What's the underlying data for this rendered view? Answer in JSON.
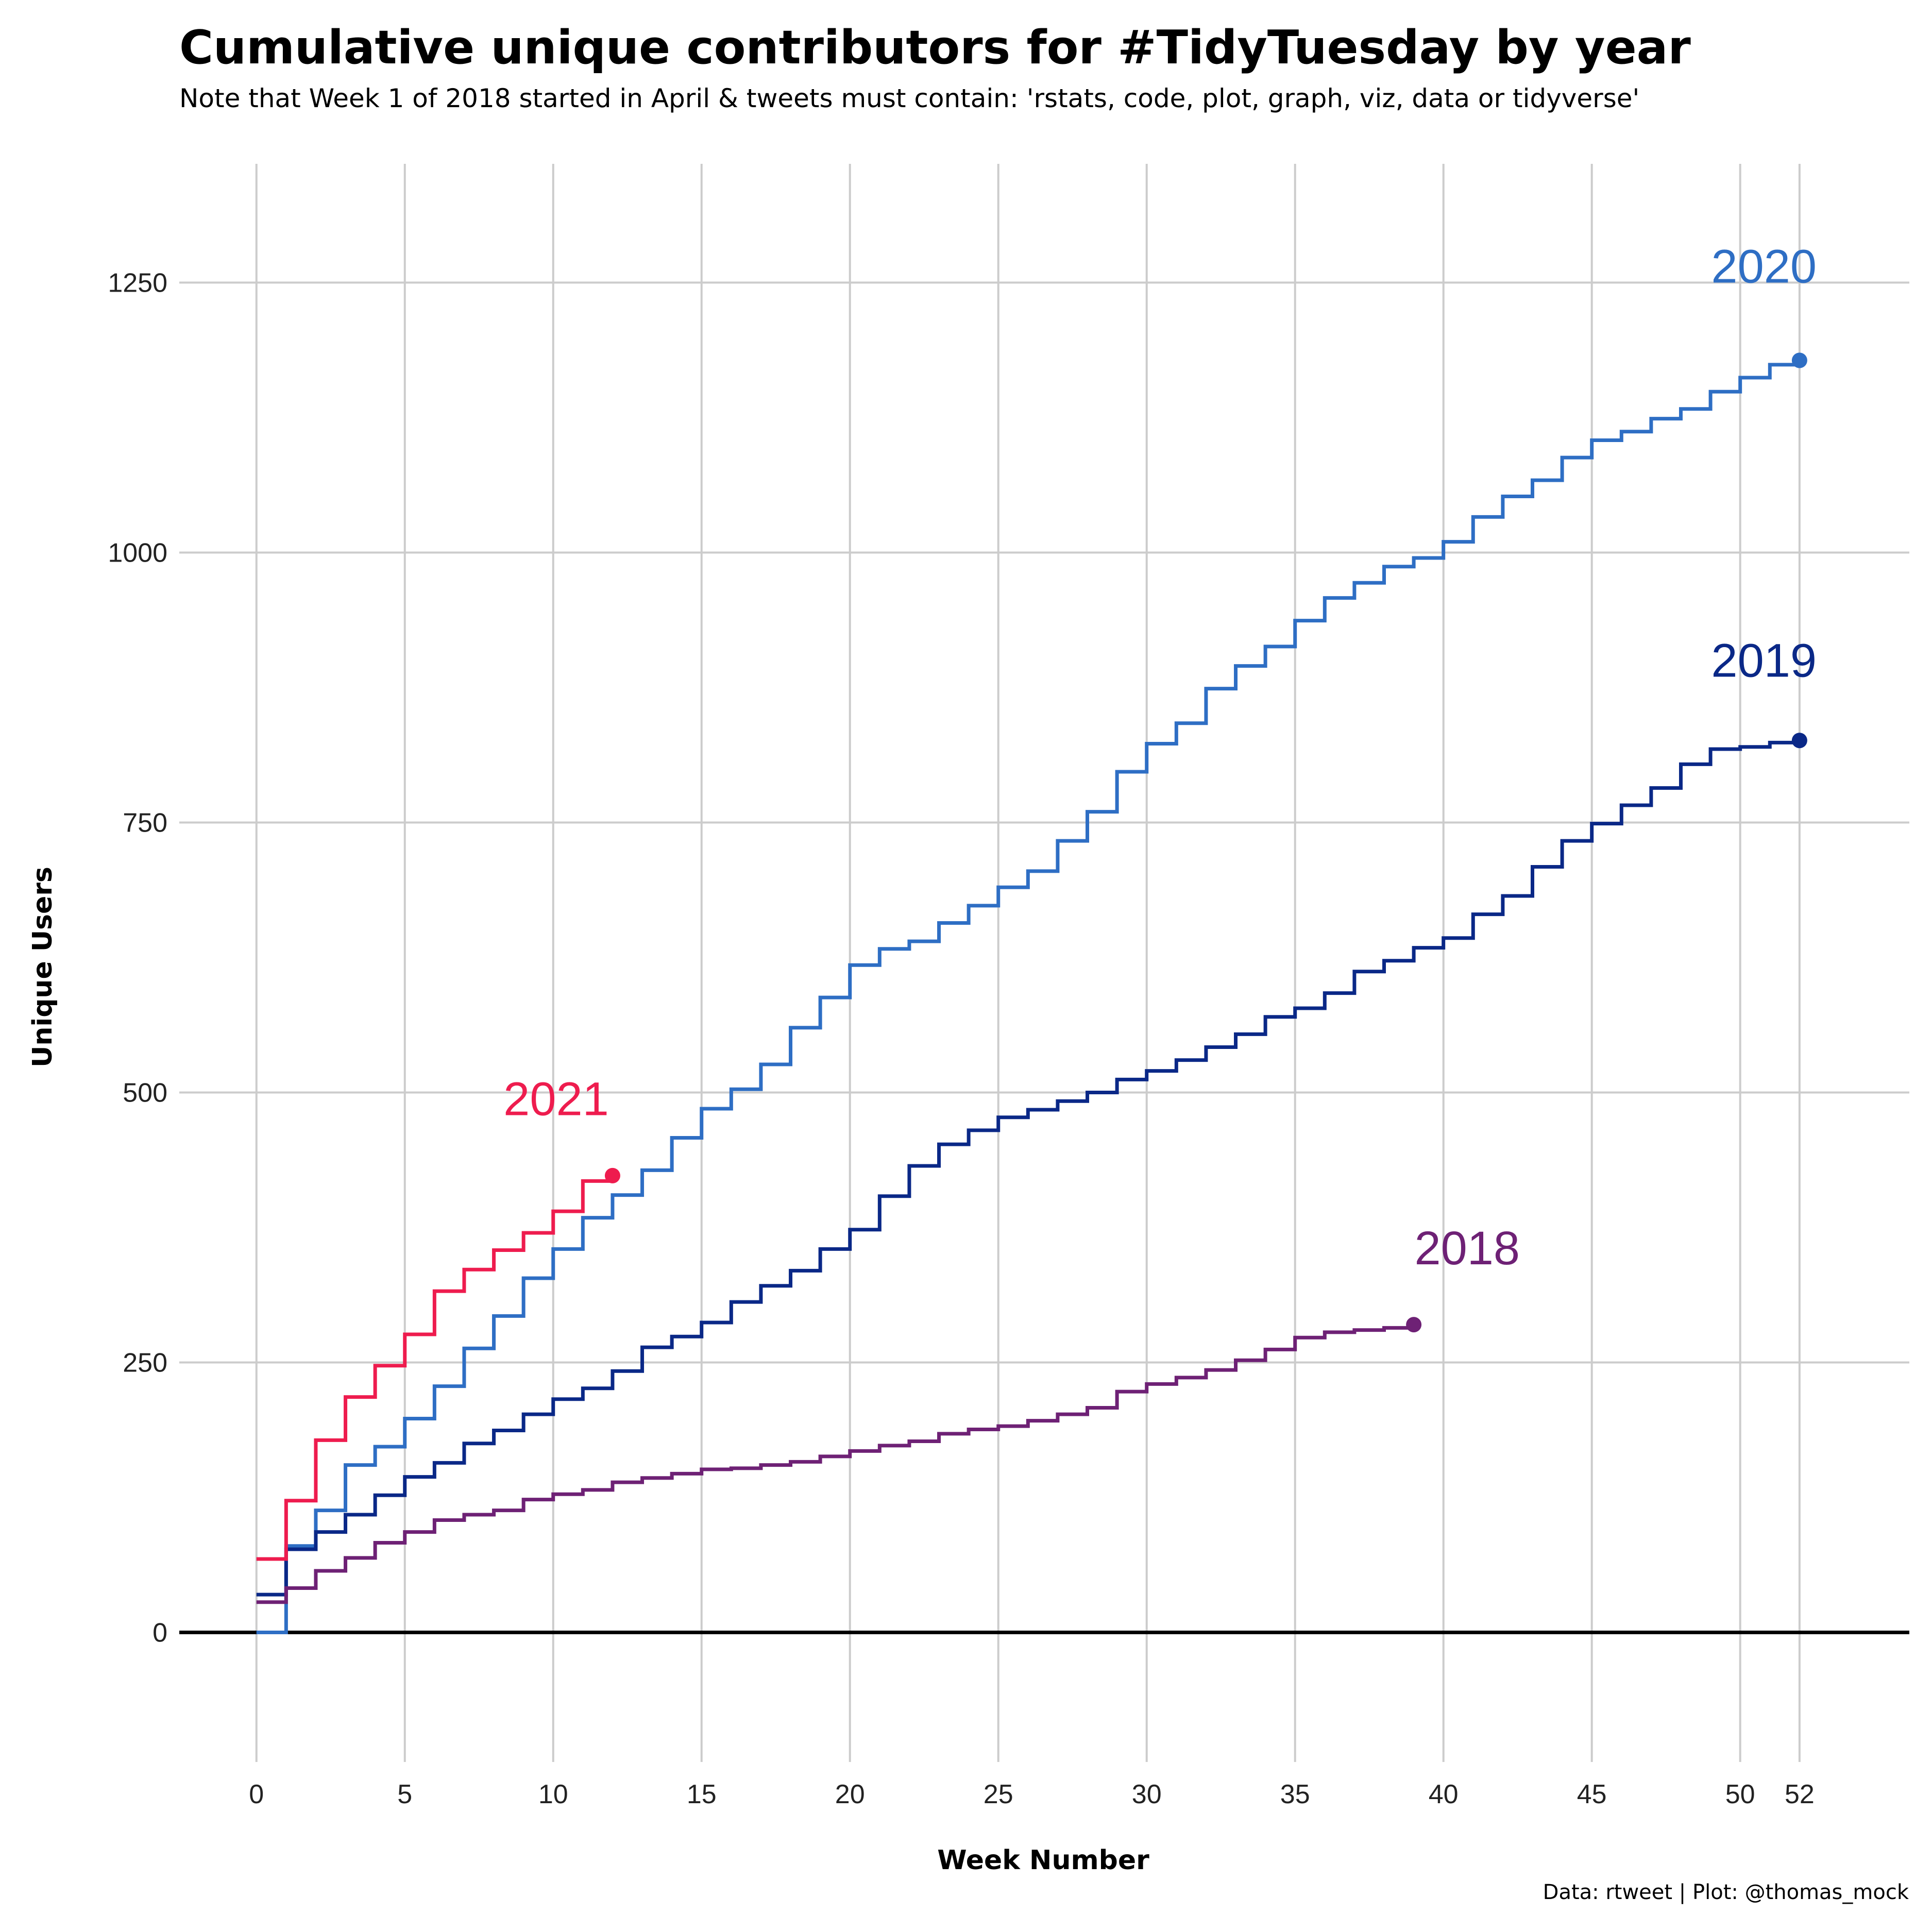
{
  "chart_data": {
    "type": "line",
    "step": true,
    "title": "Cumulative unique contributors for #TidyTuesday by year",
    "subtitle": "Note that Week 1 of 2018 started in April & tweets must contain: 'rstats, code, plot, graph, viz, data or tidyverse'",
    "caption": "Data: rtweet | Plot: @thomas_mock",
    "xlabel": "Week Number",
    "ylabel": "Unique Users",
    "xlim": [
      -2.6,
      55.7
    ],
    "ylim": [
      -120,
      1360
    ],
    "x_ticks": [
      0,
      5,
      10,
      15,
      20,
      25,
      30,
      35,
      40,
      45,
      50,
      52
    ],
    "y_ticks": [
      0,
      250,
      500,
      750,
      1000,
      1250
    ],
    "grid": true,
    "series": [
      {
        "name": "2020",
        "color": "#2E6EC4",
        "x": [
          0,
          1,
          2,
          3,
          4,
          5,
          6,
          7,
          8,
          9,
          10,
          11,
          12,
          13,
          14,
          15,
          16,
          17,
          18,
          19,
          20,
          21,
          22,
          23,
          24,
          25,
          26,
          27,
          28,
          29,
          30,
          31,
          32,
          33,
          34,
          35,
          36,
          37,
          38,
          39,
          40,
          41,
          42,
          43,
          44,
          45,
          46,
          47,
          48,
          49,
          50,
          51,
          52
        ],
        "values": [
          0,
          80,
          113,
          155,
          172,
          198,
          228,
          263,
          293,
          328,
          355,
          384,
          405,
          428,
          458,
          485,
          503,
          526,
          560,
          588,
          618,
          633,
          640,
          657,
          673,
          690,
          705,
          733,
          760,
          797,
          823,
          842,
          874,
          895,
          913,
          937,
          958,
          972,
          987,
          995,
          1010,
          1033,
          1052,
          1067,
          1088,
          1104,
          1112,
          1124,
          1133,
          1149,
          1162,
          1174,
          1178
        ]
      },
      {
        "name": "2019",
        "color": "#0A2887",
        "x": [
          0,
          1,
          2,
          3,
          4,
          5,
          6,
          7,
          8,
          9,
          10,
          11,
          12,
          13,
          14,
          15,
          16,
          17,
          18,
          19,
          20,
          21,
          22,
          23,
          24,
          25,
          26,
          27,
          28,
          29,
          30,
          31,
          32,
          33,
          34,
          35,
          36,
          37,
          38,
          39,
          40,
          41,
          42,
          43,
          44,
          45,
          46,
          47,
          48,
          49,
          50,
          51,
          52
        ],
        "values": [
          35,
          77,
          93,
          109,
          127,
          144,
          157,
          175,
          187,
          202,
          216,
          226,
          242,
          264,
          274,
          287,
          306,
          321,
          335,
          355,
          373,
          404,
          432,
          452,
          465,
          477,
          484,
          492,
          500,
          512,
          520,
          530,
          542,
          554,
          570,
          578,
          592,
          612,
          622,
          634,
          643,
          665,
          682,
          709,
          733,
          749,
          766,
          782,
          804,
          818,
          820,
          824,
          826
        ]
      },
      {
        "name": "2021",
        "color": "#EE1C4E",
        "x": [
          0,
          1,
          2,
          3,
          4,
          5,
          6,
          7,
          8,
          9,
          10,
          11,
          12
        ],
        "values": [
          68,
          122,
          178,
          218,
          247,
          276,
          316,
          336,
          354,
          370,
          390,
          418,
          423
        ]
      },
      {
        "name": "2018",
        "color": "#6E2175",
        "x": [
          0,
          1,
          2,
          3,
          4,
          5,
          6,
          7,
          8,
          9,
          10,
          11,
          12,
          13,
          14,
          15,
          16,
          17,
          18,
          19,
          20,
          21,
          22,
          23,
          24,
          25,
          26,
          27,
          28,
          29,
          30,
          31,
          32,
          33,
          34,
          35,
          36,
          37,
          38,
          39
        ],
        "values": [
          28,
          41,
          57,
          69,
          83,
          93,
          104,
          109,
          113,
          123,
          128,
          132,
          139,
          143,
          147,
          151,
          152,
          155,
          158,
          163,
          168,
          173,
          177,
          184,
          188,
          191,
          196,
          202,
          208,
          223,
          230,
          236,
          243,
          252,
          262,
          273,
          278,
          280,
          282,
          285
        ]
      }
    ],
    "labels": [
      {
        "text": "2020",
        "x": 50.8,
        "y": 1250,
        "color": "#2E6EC4"
      },
      {
        "text": "2019",
        "x": 50.8,
        "y": 885,
        "color": "#0A2887"
      },
      {
        "text": "2021",
        "x": 10.1,
        "y": 479,
        "color": "#EE1C4E"
      },
      {
        "text": "2018",
        "x": 40.8,
        "y": 341,
        "color": "#6E2175"
      }
    ]
  }
}
